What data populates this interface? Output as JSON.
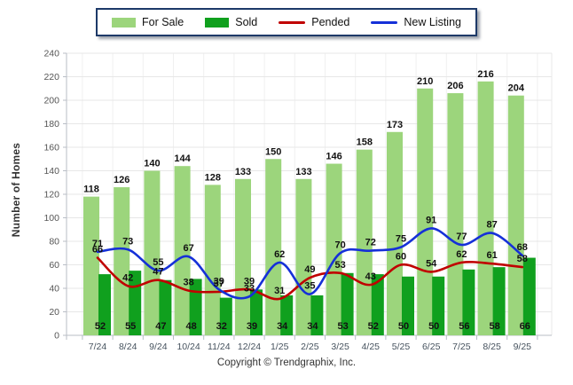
{
  "legend": {
    "items": [
      {
        "label": "For Sale",
        "type": "bar",
        "color": "#9CD57C"
      },
      {
        "label": "Sold",
        "type": "bar",
        "color": "#10A01E"
      },
      {
        "label": "Pended",
        "type": "line",
        "color": "#C00000"
      },
      {
        "label": "New Listing",
        "type": "line",
        "color": "#1530D8"
      }
    ],
    "border_color": "#1D3968"
  },
  "chart_data": {
    "type": "bar",
    "subtype": "grouped-bars-with-smooth-lines",
    "categories": [
      "7/24",
      "8/24",
      "9/24",
      "10/24",
      "11/24",
      "12/24",
      "1/25",
      "2/25",
      "3/25",
      "4/25",
      "5/25",
      "6/25",
      "7/25",
      "8/25",
      "9/25"
    ],
    "series": [
      {
        "name": "For Sale",
        "type": "bar",
        "color": "#9CD57C",
        "values": [
          118,
          126,
          140,
          144,
          128,
          133,
          150,
          133,
          146,
          158,
          173,
          210,
          206,
          216,
          204
        ]
      },
      {
        "name": "Sold",
        "type": "bar",
        "color": "#10A01E",
        "values": [
          52,
          55,
          47,
          48,
          32,
          39,
          34,
          34,
          53,
          52,
          50,
          50,
          56,
          58,
          66
        ]
      },
      {
        "name": "Pended",
        "type": "line",
        "color": "#C00000",
        "values": [
          66,
          42,
          47,
          38,
          37,
          39,
          31,
          49,
          53,
          43,
          60,
          54,
          62,
          61,
          58
        ]
      },
      {
        "name": "New Listing",
        "type": "line",
        "color": "#1530D8",
        "values": [
          71,
          73,
          55,
          67,
          39,
          33,
          62,
          35,
          70,
          72,
          75,
          91,
          77,
          87,
          68
        ]
      }
    ],
    "title": "",
    "xlabel": "",
    "ylabel": "Number of Homes",
    "ylim": [
      0,
      240
    ],
    "ytick_step": 20,
    "grid": true,
    "legend_position": "top-center",
    "value_labels": true
  },
  "footer": {
    "copyright": "Copyright © Trendgraphix, Inc."
  }
}
